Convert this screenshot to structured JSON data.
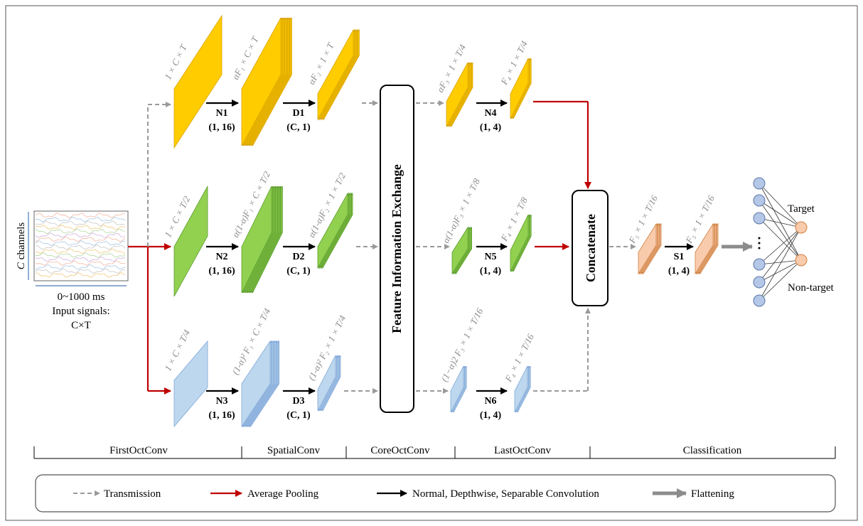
{
  "input": {
    "channel_symbol": "C",
    "channel_label": "channels",
    "time_label": "0~1000 ms",
    "caption_line1": "Input signals:",
    "caption_line2": "C×T"
  },
  "rows": [
    {
      "shapes": [
        "1 × C × T",
        "αF₁ × C × T",
        "αF₂ × 1 × T",
        "αF₃ × 1 × T/4",
        "F₄ × 1 × T/4"
      ],
      "ops": [
        {
          "name": "N1",
          "kernel": "(1, 16)"
        },
        {
          "name": "D1",
          "kernel": "(C, 1)"
        },
        {
          "name": "N4",
          "kernel": "(1, 4)"
        }
      ]
    },
    {
      "shapes": [
        "1 × C × T/2",
        "α(1-α)F₁ × C × T/2",
        "α(1-α)F₂ × 1 × T/2",
        "α(1-α)F₃ × 1 × T/8",
        "F₄ × 1 × T/8"
      ],
      "ops": [
        {
          "name": "N2",
          "kernel": "(1, 16)"
        },
        {
          "name": "D2",
          "kernel": "(C, 1)"
        },
        {
          "name": "N5",
          "kernel": "(1, 4)"
        }
      ]
    },
    {
      "shapes": [
        "1 × C × T/4",
        "(1-α)² F₁ × C × T/4",
        "(1-α)² F₂ × 1 × T/4",
        "(1−α)2 F₃ × 1 × T/16",
        "F₄ × 1 × T/16"
      ],
      "ops": [
        {
          "name": "N3",
          "kernel": "(1, 16)"
        },
        {
          "name": "D3",
          "kernel": "(C, 1)"
        },
        {
          "name": "N6",
          "kernel": "(1, 4)"
        }
      ]
    }
  ],
  "exchange": "Feature Information Exchange",
  "concatenate": "Concatenate",
  "classification": {
    "shapes": [
      "F₅ × 1 × T/16",
      "F₅ × 1 × T/16"
    ],
    "op": {
      "name": "S1",
      "kernel": "(1, 4)"
    },
    "outputs": [
      "Target",
      "Non-target"
    ]
  },
  "stages": [
    "FirstOctConv",
    "SpatialConv",
    "CoreOctConv",
    "LastOctConv",
    "Classification"
  ],
  "legend": [
    "Transmission",
    "Average Pooling",
    "Normal, Depthwise, Separable Convolution",
    "Flattening"
  ]
}
